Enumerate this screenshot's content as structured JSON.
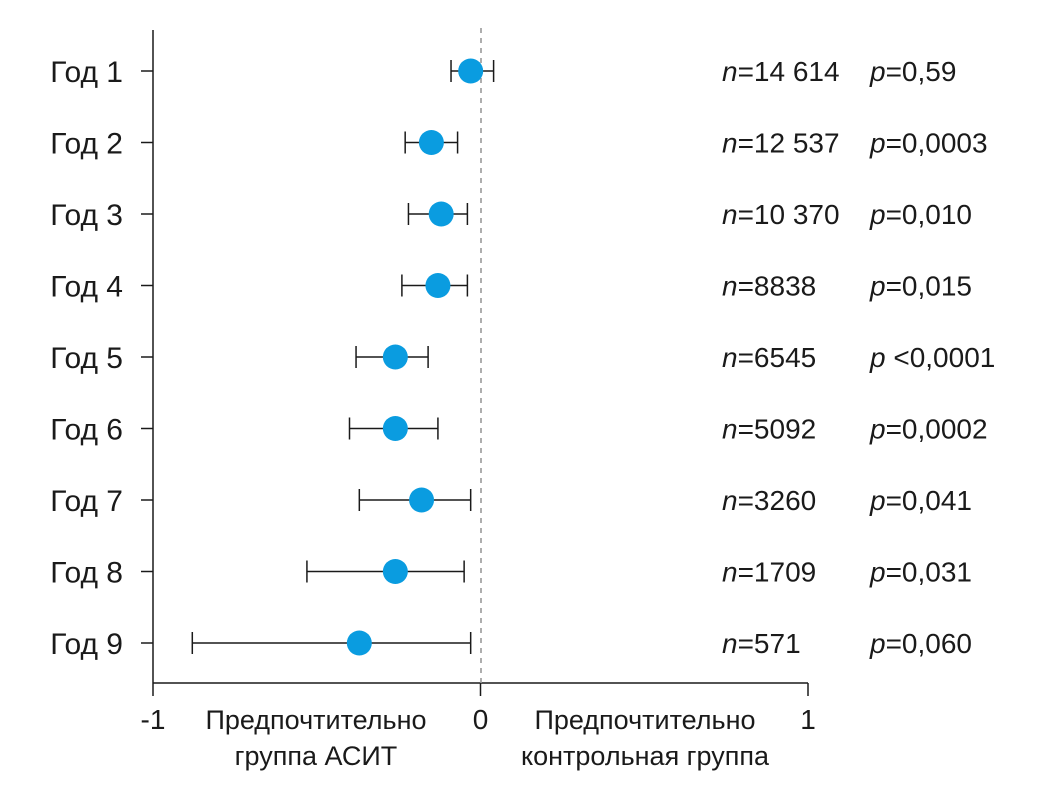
{
  "chart_data": {
    "type": "forest",
    "xlim": [
      -1,
      1
    ],
    "x_ticks": [
      "-1",
      "0",
      "1"
    ],
    "reference_line": 0,
    "marker_color": "#0a9ce0",
    "rows": [
      {
        "label": "Год 1",
        "estimate": -0.03,
        "ci_low": -0.09,
        "ci_high": 0.04,
        "n_prefix": "n",
        "n_value": "=14 614",
        "p_prefix": "p",
        "p_value": "=0,59"
      },
      {
        "label": "Год 2",
        "estimate": -0.15,
        "ci_low": -0.23,
        "ci_high": -0.07,
        "n_prefix": "n",
        "n_value": "=12 537",
        "p_prefix": "p",
        "p_value": "=0,0003"
      },
      {
        "label": "Год 3",
        "estimate": -0.12,
        "ci_low": -0.22,
        "ci_high": -0.04,
        "n_prefix": "n",
        "n_value": "=10 370",
        "p_prefix": "p",
        "p_value": "=0,010"
      },
      {
        "label": "Год 4",
        "estimate": -0.13,
        "ci_low": -0.24,
        "ci_high": -0.04,
        "n_prefix": "n",
        "n_value": "=8838",
        "p_prefix": "p",
        "p_value": "=0,015"
      },
      {
        "label": "Год 5",
        "estimate": -0.26,
        "ci_low": -0.38,
        "ci_high": -0.16,
        "n_prefix": "n",
        "n_value": "=6545",
        "p_prefix": "p",
        "p_value": " <0,0001"
      },
      {
        "label": "Год 6",
        "estimate": -0.26,
        "ci_low": -0.4,
        "ci_high": -0.13,
        "n_prefix": "n",
        "n_value": "=5092",
        "p_prefix": "p",
        "p_value": "=0,0002"
      },
      {
        "label": "Год 7",
        "estimate": -0.18,
        "ci_low": -0.37,
        "ci_high": -0.03,
        "n_prefix": "n",
        "n_value": "=3260",
        "p_prefix": "p",
        "p_value": "=0,041"
      },
      {
        "label": "Год 8",
        "estimate": -0.26,
        "ci_low": -0.53,
        "ci_high": -0.05,
        "n_prefix": "n",
        "n_value": "=1709",
        "p_prefix": "p",
        "p_value": "=0,031"
      },
      {
        "label": "Год 9",
        "estimate": -0.37,
        "ci_low": -0.88,
        "ci_high": -0.03,
        "n_prefix": "n",
        "n_value": "=571",
        "p_prefix": "p",
        "p_value": "=0,060"
      }
    ],
    "left_side_label": [
      "Предпочтительно",
      "группа АСИТ"
    ],
    "right_side_label": [
      "Предпочтительно",
      "контрольная группа"
    ]
  }
}
